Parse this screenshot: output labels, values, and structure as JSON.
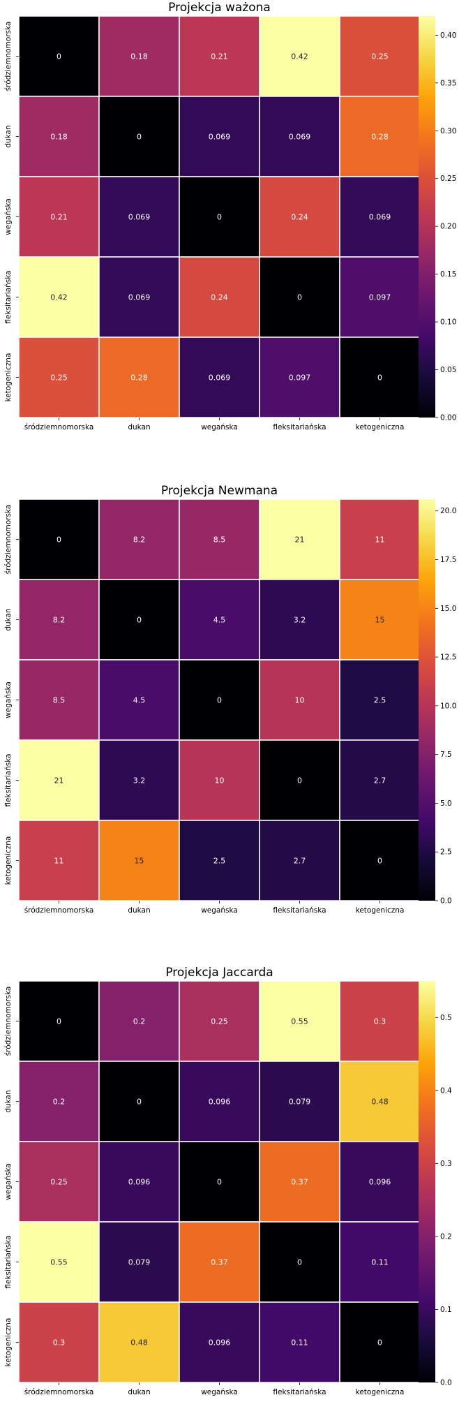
{
  "chart_data": [
    {
      "type": "heatmap",
      "title": "Projekcja ważona",
      "categories": [
        "śródziemnomorska",
        "dukan",
        "wegańska",
        "fleksitariańska",
        "ketogeniczna"
      ],
      "values": [
        [
          0,
          0.18,
          0.21,
          0.42,
          0.25
        ],
        [
          0.18,
          0,
          0.069,
          0.069,
          0.28
        ],
        [
          0.21,
          0.069,
          0,
          0.24,
          0.069
        ],
        [
          0.42,
          0.069,
          0.24,
          0,
          0.097
        ],
        [
          0.25,
          0.28,
          0.069,
          0.097,
          0
        ]
      ],
      "labels": [
        [
          "0",
          "0.18",
          "0.21",
          "0.42",
          "0.25"
        ],
        [
          "0.18",
          "0",
          "0.069",
          "0.069",
          "0.28"
        ],
        [
          "0.21",
          "0.069",
          "0",
          "0.24",
          "0.069"
        ],
        [
          "0.42",
          "0.069",
          "0.24",
          "0",
          "0.097"
        ],
        [
          "0.25",
          "0.28",
          "0.069",
          "0.097",
          "0"
        ]
      ],
      "vmin": 0,
      "vmax": 0.42,
      "colorbar_ticks": [
        "0.00",
        "0.05",
        "0.10",
        "0.15",
        "0.20",
        "0.25",
        "0.30",
        "0.35",
        "0.40"
      ],
      "colormap": "inferno"
    },
    {
      "type": "heatmap",
      "title": "Projekcja Newmana",
      "categories": [
        "śródziemnomorska",
        "dukan",
        "wegańska",
        "fleksitariańska",
        "ketogeniczna"
      ],
      "values": [
        [
          0,
          8.2,
          8.5,
          21,
          11
        ],
        [
          8.2,
          0,
          4.5,
          3.2,
          15
        ],
        [
          8.5,
          4.5,
          0,
          10,
          2.5
        ],
        [
          21,
          3.2,
          10,
          0,
          2.7
        ],
        [
          11,
          15,
          2.5,
          2.7,
          0
        ]
      ],
      "labels": [
        [
          "0",
          "8.2",
          "8.5",
          "21",
          "11"
        ],
        [
          "8.2",
          "0",
          "4.5",
          "3.2",
          "15"
        ],
        [
          "8.5",
          "4.5",
          "0",
          "10",
          "2.5"
        ],
        [
          "21",
          "3.2",
          "10",
          "0",
          "2.7"
        ],
        [
          "11",
          "15",
          "2.5",
          "2.7",
          "0"
        ]
      ],
      "vmin": 0,
      "vmax": 20.6,
      "colorbar_ticks": [
        "0.0",
        "2.5",
        "5.0",
        "7.5",
        "10.0",
        "12.5",
        "15.0",
        "17.5",
        "20.0"
      ],
      "colormap": "inferno"
    },
    {
      "type": "heatmap",
      "title": "Projekcja Jaccarda",
      "categories": [
        "śródziemnomorska",
        "dukan",
        "wegańska",
        "fleksitariańska",
        "ketogeniczna"
      ],
      "values": [
        [
          0,
          0.2,
          0.25,
          0.55,
          0.3
        ],
        [
          0.2,
          0,
          0.096,
          0.079,
          0.48
        ],
        [
          0.25,
          0.096,
          0,
          0.37,
          0.096
        ],
        [
          0.55,
          0.079,
          0.37,
          0,
          0.11
        ],
        [
          0.3,
          0.48,
          0.096,
          0.11,
          0
        ]
      ],
      "labels": [
        [
          "0",
          "0.2",
          "0.25",
          "0.55",
          "0.3"
        ],
        [
          "0.2",
          "0",
          "0.096",
          "0.079",
          "0.48"
        ],
        [
          "0.25",
          "0.096",
          "0",
          "0.37",
          "0.096"
        ],
        [
          "0.55",
          "0.079",
          "0.37",
          "0",
          "0.11"
        ],
        [
          "0.3",
          "0.48",
          "0.096",
          "0.11",
          "0"
        ]
      ],
      "vmin": 0,
      "vmax": 0.55,
      "colorbar_ticks": [
        "0.0",
        "0.1",
        "0.2",
        "0.3",
        "0.4",
        "0.5"
      ],
      "colormap": "inferno"
    }
  ]
}
